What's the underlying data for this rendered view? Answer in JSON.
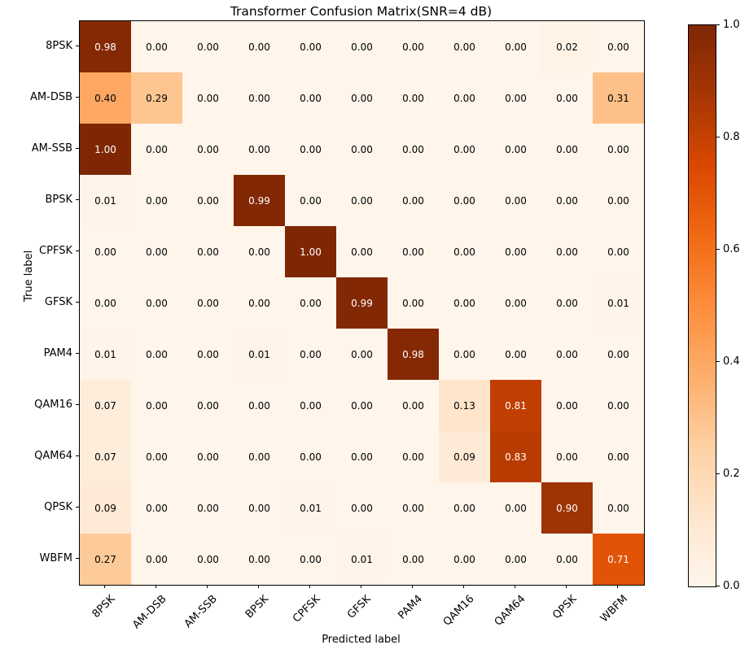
{
  "chart_data": {
    "type": "heatmap",
    "title": "Transformer Confusion Matrix(SNR=4 dB)",
    "xlabel": "Predicted label",
    "ylabel": "True label",
    "categories": [
      "8PSK",
      "AM-DSB",
      "AM-SSB",
      "BPSK",
      "CPFSK",
      "GFSK",
      "PAM4",
      "QAM16",
      "QAM64",
      "QPSK",
      "WBFM"
    ],
    "matrix": [
      [
        0.98,
        0.0,
        0.0,
        0.0,
        0.0,
        0.0,
        0.0,
        0.0,
        0.0,
        0.02,
        0.0
      ],
      [
        0.4,
        0.29,
        0.0,
        0.0,
        0.0,
        0.0,
        0.0,
        0.0,
        0.0,
        0.0,
        0.31
      ],
      [
        1.0,
        0.0,
        0.0,
        0.0,
        0.0,
        0.0,
        0.0,
        0.0,
        0.0,
        0.0,
        0.0
      ],
      [
        0.01,
        0.0,
        0.0,
        0.99,
        0.0,
        0.0,
        0.0,
        0.0,
        0.0,
        0.0,
        0.0
      ],
      [
        0.0,
        0.0,
        0.0,
        0.0,
        1.0,
        0.0,
        0.0,
        0.0,
        0.0,
        0.0,
        0.0
      ],
      [
        0.0,
        0.0,
        0.0,
        0.0,
        0.0,
        0.99,
        0.0,
        0.0,
        0.0,
        0.0,
        0.01
      ],
      [
        0.01,
        0.0,
        0.0,
        0.01,
        0.0,
        0.0,
        0.98,
        0.0,
        0.0,
        0.0,
        0.0
      ],
      [
        0.07,
        0.0,
        0.0,
        0.0,
        0.0,
        0.0,
        0.0,
        0.13,
        0.81,
        0.0,
        0.0
      ],
      [
        0.07,
        0.0,
        0.0,
        0.0,
        0.0,
        0.0,
        0.0,
        0.09,
        0.83,
        0.0,
        0.0
      ],
      [
        0.09,
        0.0,
        0.0,
        0.0,
        0.01,
        0.0,
        0.0,
        0.0,
        0.0,
        0.9,
        0.0
      ],
      [
        0.27,
        0.0,
        0.0,
        0.0,
        0.0,
        0.01,
        0.0,
        0.0,
        0.0,
        0.0,
        0.71
      ]
    ],
    "value_format_decimals": 2,
    "vmin": 0.0,
    "vmax": 1.0,
    "colormap_name": "Oranges",
    "colormap_anchors": [
      [
        0.0,
        "#fff5eb"
      ],
      [
        0.125,
        "#fee6ce"
      ],
      [
        0.25,
        "#fdd0a2"
      ],
      [
        0.375,
        "#fdae6b"
      ],
      [
        0.5,
        "#fd8d3c"
      ],
      [
        0.625,
        "#f16913"
      ],
      [
        0.75,
        "#d94801"
      ],
      [
        0.875,
        "#a63603"
      ],
      [
        1.0,
        "#7f2704"
      ]
    ],
    "colorbar_ticks": [
      "0.0",
      "0.2",
      "0.4",
      "0.6",
      "0.8",
      "1.0"
    ],
    "cell_text_white_above": 0.5,
    "cell_text_color_low": "#000000",
    "cell_text_color_high": "#ffffff",
    "axis_color": "#000000",
    "background_color": "#ffffff",
    "legend_position": "colorbar-right",
    "grid": false
  }
}
